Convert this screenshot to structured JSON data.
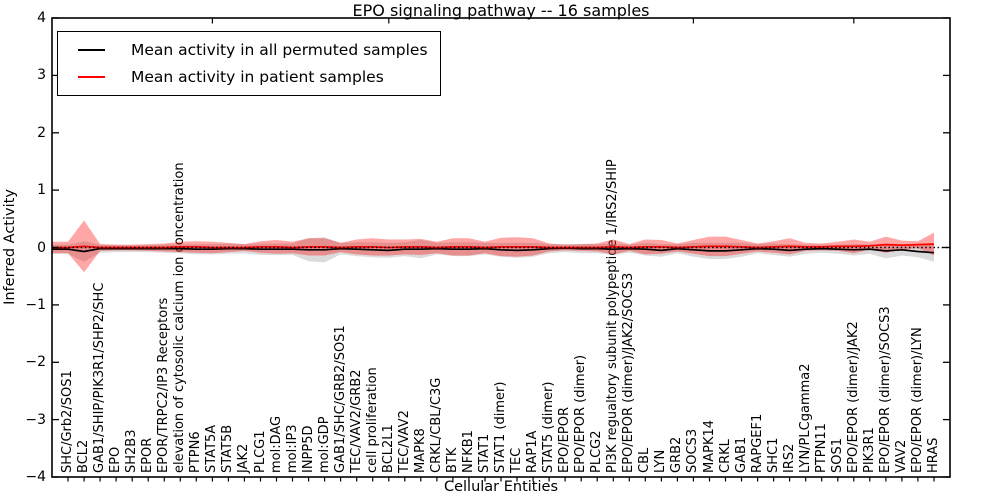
{
  "figure": {
    "background": "#ffffff"
  },
  "chart_data": {
    "type": "line",
    "title": "EPO signaling pathway -- 16 samples",
    "xlabel": "Cellular Entities",
    "ylabel": "Inferred Activity",
    "ylim": [
      -4,
      4
    ],
    "yticks": [
      4,
      3,
      2,
      1,
      0,
      -1,
      -2,
      -3,
      -4
    ],
    "grid": false,
    "legend_position": "upper left",
    "zero_line": {
      "y": 0,
      "color": "#000000",
      "style": "dotted"
    },
    "categories": [
      "SHC/Grb2/SOS1",
      "BCL2",
      "GAB1/SHIP/PIK3R1/SHP2/SHC",
      "EPO",
      "SH2B3",
      "EPOR",
      "EPOR/TRPC2/IP3 Receptors",
      "elevation of cytosolic calcium ion concentration",
      "PTPN6",
      "STAT5A",
      "STAT5B",
      "JAK2",
      "PLCG1",
      "mol:DAG",
      "mol:IP3",
      "INPP5D",
      "mol:GDP",
      "GAB1/SHC/GRB2/SOS1",
      "TEC/VAV2/GRB2",
      "cell proliferation",
      "BCL2L1",
      "TEC/VAV2",
      "MAPK8",
      "CRKL/CBL/C3G",
      "BTK",
      "NFKB1",
      "STAT1",
      "STAT1 (dimer)",
      "TEC",
      "RAP1A",
      "STAT5 (dimer)",
      "EPO/EPOR",
      "EPO/EPOR (dimer)",
      "PLCG2",
      "PI3K regualtory subunit polypeptide 1/IRS2/SHIP",
      "EPO/EPOR (dimer)/JAK2/SOCS3",
      "CBL",
      "LYN",
      "GRB2",
      "SOCS3",
      "MAPK14",
      "CRKL",
      "GAB1",
      "RAPGEF1",
      "SHC1",
      "IRS2",
      "LYN/PLCgamma2",
      "PTPN11",
      "SOS1",
      "EPO/EPOR (dimer)/JAK2",
      "PIK3R1",
      "EPO/EPOR (dimer)/SOCS3",
      "VAV2",
      "EPO/EPOR (dimer)/LYN",
      "HRAS"
    ],
    "series": [
      {
        "name": "Mean activity in all permuted samples",
        "line_color": "#000000",
        "band_color": "#999999",
        "band_opacity": 0.35,
        "means": [
          -0.03,
          -0.07,
          -0.02,
          -0.02,
          -0.02,
          -0.02,
          -0.02,
          -0.02,
          -0.03,
          -0.03,
          -0.02,
          -0.02,
          -0.03,
          -0.03,
          -0.03,
          -0.04,
          -0.04,
          -0.02,
          -0.03,
          -0.04,
          -0.05,
          -0.03,
          -0.03,
          -0.02,
          -0.03,
          -0.03,
          -0.02,
          -0.04,
          -0.05,
          -0.04,
          -0.02,
          -0.01,
          -0.02,
          -0.02,
          -0.03,
          -0.02,
          -0.03,
          -0.05,
          -0.02,
          -0.04,
          -0.06,
          -0.06,
          -0.04,
          -0.02,
          -0.03,
          -0.05,
          -0.03,
          -0.02,
          -0.03,
          -0.04,
          -0.03,
          -0.06,
          -0.04,
          -0.07,
          -0.09
        ],
        "stds": [
          0.08,
          0.18,
          0.07,
          0.06,
          0.06,
          0.06,
          0.07,
          0.08,
          0.09,
          0.09,
          0.09,
          0.08,
          0.1,
          0.1,
          0.1,
          0.2,
          0.22,
          0.1,
          0.12,
          0.13,
          0.13,
          0.12,
          0.16,
          0.1,
          0.12,
          0.12,
          0.1,
          0.12,
          0.13,
          0.12,
          0.08,
          0.07,
          0.08,
          0.08,
          0.1,
          0.07,
          0.11,
          0.11,
          0.08,
          0.12,
          0.14,
          0.14,
          0.12,
          0.08,
          0.1,
          0.11,
          0.08,
          0.07,
          0.08,
          0.1,
          0.08,
          0.13,
          0.1,
          0.1,
          0.16
        ]
      },
      {
        "name": "Mean activity in patient samples",
        "line_color": "#ff0000",
        "band_color": "#ff0000",
        "band_opacity": 0.35,
        "means": [
          0.0,
          0.02,
          0.0,
          0.0,
          0.0,
          0.0,
          0.0,
          0.01,
          0.01,
          0.0,
          0.0,
          0.0,
          0.01,
          0.01,
          0.0,
          0.01,
          0.01,
          0.0,
          0.01,
          0.01,
          0.0,
          0.01,
          0.01,
          0.0,
          0.01,
          0.01,
          0.0,
          0.01,
          0.01,
          0.01,
          0.0,
          0.0,
          0.0,
          0.0,
          0.01,
          0.0,
          0.01,
          0.01,
          0.0,
          0.01,
          0.02,
          0.02,
          0.01,
          0.0,
          0.01,
          0.02,
          0.01,
          0.01,
          0.02,
          0.02,
          0.03,
          0.05,
          0.04,
          0.05,
          0.06
        ],
        "stds": [
          0.1,
          0.45,
          0.06,
          0.05,
          0.05,
          0.06,
          0.07,
          0.09,
          0.1,
          0.1,
          0.08,
          0.06,
          0.1,
          0.12,
          0.1,
          0.15,
          0.15,
          0.08,
          0.13,
          0.15,
          0.14,
          0.13,
          0.14,
          0.1,
          0.15,
          0.15,
          0.1,
          0.16,
          0.17,
          0.15,
          0.07,
          0.05,
          0.06,
          0.07,
          0.13,
          0.06,
          0.13,
          0.12,
          0.07,
          0.12,
          0.17,
          0.17,
          0.12,
          0.07,
          0.1,
          0.14,
          0.07,
          0.06,
          0.08,
          0.12,
          0.07,
          0.14,
          0.08,
          0.06,
          0.2
        ]
      }
    ]
  }
}
